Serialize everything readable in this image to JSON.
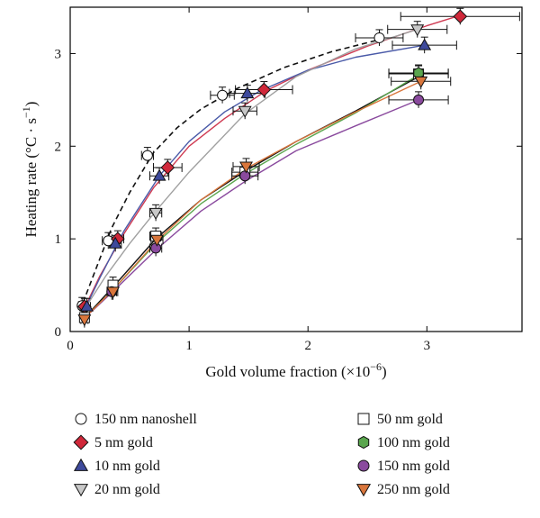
{
  "chart_data": {
    "type": "scatter",
    "xlabel_prefix": "Gold volume fraction (×10",
    "xlabel_exp": "−6",
    "xlabel_suffix": ")",
    "ylabel_main": "Heating rate (°C · s",
    "ylabel_exp": "−1",
    "ylabel_suffix": ")",
    "xlim": [
      0,
      3.8
    ],
    "ylim": [
      0,
      3.5
    ],
    "xticks": [
      0,
      1,
      2,
      3
    ],
    "yticks": [
      0,
      1,
      2,
      3
    ],
    "legend_position": "below",
    "series": [
      {
        "name": "150 nm nanoshell",
        "marker": "circle",
        "fill": "#ffffff",
        "curve_color": "#111111",
        "dashed": true,
        "points": [
          {
            "x": 0.1,
            "y": 0.28,
            "xerr": 0.03
          },
          {
            "x": 0.32,
            "y": 0.98,
            "xerr": 0.05
          },
          {
            "x": 0.65,
            "y": 1.9,
            "xerr": 0.05
          },
          {
            "x": 1.28,
            "y": 2.55,
            "xerr": 0.1
          },
          {
            "x": 2.6,
            "y": 3.17,
            "xerr": 0.2
          }
        ],
        "curve": [
          [
            0.08,
            0.22
          ],
          [
            0.2,
            0.62
          ],
          [
            0.35,
            1.12
          ],
          [
            0.5,
            1.5
          ],
          [
            0.7,
            1.93
          ],
          [
            0.9,
            2.2
          ],
          [
            1.1,
            2.4
          ],
          [
            1.4,
            2.62
          ],
          [
            1.8,
            2.85
          ],
          [
            2.2,
            3.02
          ],
          [
            2.6,
            3.15
          ]
        ]
      },
      {
        "name": "5 nm gold",
        "marker": "diamond",
        "fill": "#d0283a",
        "curve_color": "#cf3a52",
        "dashed": false,
        "points": [
          {
            "x": 0.12,
            "y": 0.27,
            "xerr": 0.03
          },
          {
            "x": 0.4,
            "y": 1.0,
            "xerr": 0.05
          },
          {
            "x": 0.82,
            "y": 1.77,
            "xerr": 0.12
          },
          {
            "x": 1.63,
            "y": 2.61,
            "xerr": 0.24
          },
          {
            "x": 3.28,
            "y": 3.4,
            "xerr": 0.5
          }
        ],
        "curve": [
          [
            0.1,
            0.2
          ],
          [
            0.25,
            0.6
          ],
          [
            0.45,
            1.05
          ],
          [
            0.7,
            1.55
          ],
          [
            1.0,
            2.0
          ],
          [
            1.3,
            2.3
          ],
          [
            1.65,
            2.6
          ],
          [
            2.0,
            2.82
          ],
          [
            2.5,
            3.08
          ],
          [
            3.0,
            3.3
          ],
          [
            3.3,
            3.42
          ]
        ]
      },
      {
        "name": "10 nm gold",
        "marker": "triangle-up",
        "fill": "#3e4a9c",
        "curve_color": "#4a5aa8",
        "dashed": false,
        "points": [
          {
            "x": 0.14,
            "y": 0.27,
            "xerr": 0.03
          },
          {
            "x": 0.38,
            "y": 0.95,
            "xerr": 0.05
          },
          {
            "x": 0.75,
            "y": 1.68,
            "xerr": 0.08
          },
          {
            "x": 1.49,
            "y": 2.57,
            "xerr": 0.15
          },
          {
            "x": 2.98,
            "y": 3.09,
            "xerr": 0.27
          }
        ],
        "curve": [
          [
            0.1,
            0.18
          ],
          [
            0.25,
            0.58
          ],
          [
            0.45,
            1.08
          ],
          [
            0.75,
            1.68
          ],
          [
            1.0,
            2.05
          ],
          [
            1.3,
            2.37
          ],
          [
            1.6,
            2.6
          ],
          [
            2.0,
            2.82
          ],
          [
            2.4,
            2.96
          ],
          [
            2.98,
            3.09
          ]
        ]
      },
      {
        "name": "20 nm gold",
        "marker": "triangle-down",
        "fill": "#c8c8c8",
        "curve_color": "#a0a0a0",
        "dashed": false,
        "points": [
          {
            "x": 0.72,
            "y": 1.28,
            "xerr": 0.05
          },
          {
            "x": 1.47,
            "y": 2.38,
            "xerr": 0.1
          },
          {
            "x": 2.92,
            "y": 3.26,
            "xerr": 0.25
          }
        ],
        "curve": [
          [
            0.1,
            0.2
          ],
          [
            0.3,
            0.6
          ],
          [
            0.5,
            0.95
          ],
          [
            0.72,
            1.3
          ],
          [
            1.0,
            1.72
          ],
          [
            1.47,
            2.35
          ],
          [
            1.9,
            2.75
          ],
          [
            2.4,
            3.05
          ],
          [
            2.92,
            3.26
          ]
        ]
      },
      {
        "name": "50 nm gold",
        "marker": "square",
        "fill": "#ffffff",
        "curve_color": "#111111",
        "dashed": false,
        "points": [
          {
            "x": 0.12,
            "y": 0.15,
            "xerr": 0.03
          },
          {
            "x": 0.36,
            "y": 0.5,
            "xerr": 0.04
          },
          {
            "x": 0.72,
            "y": 1.03,
            "xerr": 0.05
          },
          {
            "x": 1.47,
            "y": 1.72,
            "xerr": 0.11
          },
          {
            "x": 2.93,
            "y": 2.78,
            "xerr": 0.25
          }
        ],
        "curve": [
          [
            0.1,
            0.12
          ],
          [
            0.36,
            0.48
          ],
          [
            0.72,
            1.0
          ],
          [
            1.1,
            1.42
          ],
          [
            1.47,
            1.73
          ],
          [
            1.9,
            2.05
          ],
          [
            2.4,
            2.38
          ],
          [
            2.93,
            2.75
          ]
        ]
      },
      {
        "name": "100 nm gold",
        "marker": "hexagon",
        "fill": "#5aa64e",
        "curve_color": "#5aa64e",
        "dashed": false,
        "points": [
          {
            "x": 2.93,
            "y": 2.79,
            "xerr": 0.25
          }
        ],
        "curve": [
          [
            0.1,
            0.12
          ],
          [
            0.36,
            0.45
          ],
          [
            0.72,
            0.95
          ],
          [
            1.1,
            1.38
          ],
          [
            1.47,
            1.7
          ],
          [
            1.9,
            2.02
          ],
          [
            2.4,
            2.36
          ],
          [
            2.93,
            2.77
          ]
        ]
      },
      {
        "name": "150 nm gold",
        "marker": "circle",
        "fill": "#8a4a9e",
        "curve_color": "#8a4a9e",
        "dashed": false,
        "points": [
          {
            "x": 0.35,
            "y": 0.43,
            "xerr": 0.04
          },
          {
            "x": 0.72,
            "y": 0.9,
            "xerr": 0.05
          },
          {
            "x": 1.47,
            "y": 1.68,
            "xerr": 0.11
          },
          {
            "x": 2.93,
            "y": 2.5,
            "xerr": 0.25
          }
        ],
        "curve": [
          [
            0.1,
            0.12
          ],
          [
            0.35,
            0.42
          ],
          [
            0.72,
            0.88
          ],
          [
            1.1,
            1.3
          ],
          [
            1.47,
            1.62
          ],
          [
            1.9,
            1.95
          ],
          [
            2.4,
            2.22
          ],
          [
            2.93,
            2.5
          ]
        ]
      },
      {
        "name": "250 nm gold",
        "marker": "triangle-down",
        "fill": "#d9763c",
        "curve_color": "#d9763c",
        "dashed": false,
        "points": [
          {
            "x": 0.12,
            "y": 0.13,
            "xerr": 0.03
          },
          {
            "x": 0.36,
            "y": 0.43,
            "xerr": 0.04
          },
          {
            "x": 0.73,
            "y": 0.99,
            "xerr": 0.05
          },
          {
            "x": 1.48,
            "y": 1.78,
            "xerr": 0.11
          },
          {
            "x": 2.95,
            "y": 2.7,
            "xerr": 0.25
          }
        ],
        "curve": [
          [
            0.1,
            0.12
          ],
          [
            0.36,
            0.45
          ],
          [
            0.73,
            0.98
          ],
          [
            1.1,
            1.42
          ],
          [
            1.48,
            1.76
          ],
          [
            1.9,
            2.05
          ],
          [
            2.4,
            2.37
          ],
          [
            2.95,
            2.7
          ]
        ]
      }
    ]
  }
}
